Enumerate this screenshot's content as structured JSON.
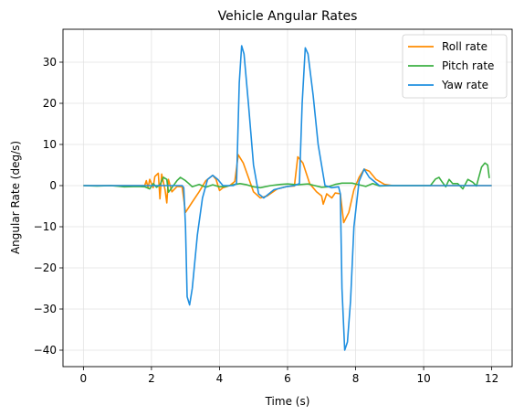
{
  "chart_data": {
    "type": "line",
    "title": "Vehicle Angular Rates",
    "xlabel": "Time (s)",
    "ylabel": "Angular Rate (deg/s)",
    "xlim": [
      -0.6,
      12.6
    ],
    "ylim": [
      -44,
      38
    ],
    "xticks": [
      0,
      2,
      4,
      6,
      8,
      10,
      12
    ],
    "yticks": [
      -40,
      -30,
      -20,
      -10,
      0,
      10,
      20,
      30
    ],
    "grid": true,
    "legend_position": "top-right",
    "series": [
      {
        "name": "Roll rate",
        "color": "#ff8c00",
        "points": [
          [
            0,
            0
          ],
          [
            1.8,
            0
          ],
          [
            1.85,
            1.2
          ],
          [
            1.9,
            -0.6
          ],
          [
            1.95,
            1.5
          ],
          [
            2.05,
            -0.5
          ],
          [
            2.1,
            2.2
          ],
          [
            2.2,
            3
          ],
          [
            2.25,
            -3.2
          ],
          [
            2.3,
            2.8
          ],
          [
            2.4,
            -1
          ],
          [
            2.45,
            -4.2
          ],
          [
            2.5,
            1.5
          ],
          [
            2.6,
            -1.5
          ],
          [
            2.75,
            -0.2
          ],
          [
            2.9,
            -0.3
          ],
          [
            3.0,
            -6.5
          ],
          [
            3.2,
            -4
          ],
          [
            3.4,
            -1.5
          ],
          [
            3.6,
            1.2
          ],
          [
            3.8,
            2.5
          ],
          [
            3.9,
            1.5
          ],
          [
            4.0,
            -1.2
          ],
          [
            4.1,
            -0.5
          ],
          [
            4.3,
            0
          ],
          [
            4.45,
            1
          ],
          [
            4.55,
            7.5
          ],
          [
            4.7,
            5.5
          ],
          [
            4.85,
            2
          ],
          [
            5.0,
            -1.5
          ],
          [
            5.2,
            -3
          ],
          [
            5.4,
            -2.5
          ],
          [
            5.7,
            -0.8
          ],
          [
            6.0,
            -0.2
          ],
          [
            6.2,
            -0.1
          ],
          [
            6.3,
            7
          ],
          [
            6.45,
            5.5
          ],
          [
            6.55,
            3
          ],
          [
            6.65,
            0.5
          ],
          [
            6.75,
            -0.5
          ],
          [
            6.85,
            -1.5
          ],
          [
            7.0,
            -2.5
          ],
          [
            7.05,
            -4.5
          ],
          [
            7.15,
            -2
          ],
          [
            7.3,
            -3
          ],
          [
            7.4,
            -1.8
          ],
          [
            7.55,
            -2
          ],
          [
            7.65,
            -9
          ],
          [
            7.8,
            -6.5
          ],
          [
            7.95,
            -1
          ],
          [
            8.1,
            2
          ],
          [
            8.25,
            4
          ],
          [
            8.4,
            3.5
          ],
          [
            8.6,
            1.5
          ],
          [
            8.85,
            0.3
          ],
          [
            9.1,
            0
          ],
          [
            12,
            0
          ]
        ]
      },
      {
        "name": "Pitch rate",
        "color": "#3cb043",
        "points": [
          [
            0,
            0
          ],
          [
            0.4,
            -0.1
          ],
          [
            0.8,
            0
          ],
          [
            1.2,
            -0.3
          ],
          [
            1.6,
            -0.2
          ],
          [
            1.8,
            -0.3
          ],
          [
            1.95,
            -0.8
          ],
          [
            2.05,
            0.5
          ],
          [
            2.15,
            -0.4
          ],
          [
            2.25,
            0.2
          ],
          [
            2.35,
            2
          ],
          [
            2.45,
            1.5
          ],
          [
            2.5,
            -1.6
          ],
          [
            2.6,
            -0.5
          ],
          [
            2.75,
            1.2
          ],
          [
            2.85,
            2
          ],
          [
            3.0,
            1.2
          ],
          [
            3.1,
            0.5
          ],
          [
            3.2,
            -0.3
          ],
          [
            3.4,
            0.3
          ],
          [
            3.6,
            -0.4
          ],
          [
            3.8,
            0.2
          ],
          [
            4.0,
            -0.3
          ],
          [
            4.2,
            -0.2
          ],
          [
            4.4,
            0.2
          ],
          [
            4.6,
            0.5
          ],
          [
            4.8,
            0.2
          ],
          [
            5.0,
            -0.3
          ],
          [
            5.2,
            -0.5
          ],
          [
            5.5,
            0
          ],
          [
            5.8,
            0.3
          ],
          [
            6.0,
            0.4
          ],
          [
            6.3,
            0.2
          ],
          [
            6.6,
            0.4
          ],
          [
            6.8,
            0
          ],
          [
            7.0,
            -0.4
          ],
          [
            7.2,
            -0.3
          ],
          [
            7.4,
            0.3
          ],
          [
            7.6,
            0.6
          ],
          [
            7.9,
            0.6
          ],
          [
            8.1,
            0.2
          ],
          [
            8.3,
            -0.2
          ],
          [
            8.5,
            0.5
          ],
          [
            8.7,
            -0.1
          ],
          [
            9.0,
            0
          ],
          [
            10.2,
            0
          ],
          [
            10.35,
            1.6
          ],
          [
            10.45,
            2
          ],
          [
            10.55,
            0.8
          ],
          [
            10.65,
            -0.3
          ],
          [
            10.75,
            1.5
          ],
          [
            10.85,
            0.5
          ],
          [
            11.0,
            0.5
          ],
          [
            11.15,
            -0.8
          ],
          [
            11.3,
            1.5
          ],
          [
            11.45,
            0.8
          ],
          [
            11.55,
            -0.1
          ],
          [
            11.7,
            4.5
          ],
          [
            11.8,
            5.5
          ],
          [
            11.88,
            5
          ],
          [
            11.93,
            1.8
          ]
        ]
      },
      {
        "name": "Yaw rate",
        "color": "#1f8fe0",
        "points": [
          [
            0,
            0
          ],
          [
            2.9,
            0
          ],
          [
            2.95,
            -0.5
          ],
          [
            3.0,
            -10
          ],
          [
            3.05,
            -27
          ],
          [
            3.12,
            -29
          ],
          [
            3.2,
            -25
          ],
          [
            3.35,
            -12
          ],
          [
            3.5,
            -3
          ],
          [
            3.65,
            1.5
          ],
          [
            3.8,
            2.5
          ],
          [
            3.95,
            1.5
          ],
          [
            4.1,
            0
          ],
          [
            4.4,
            0
          ],
          [
            4.5,
            0.5
          ],
          [
            4.58,
            25
          ],
          [
            4.65,
            34
          ],
          [
            4.72,
            32
          ],
          [
            4.85,
            20
          ],
          [
            5.0,
            5
          ],
          [
            5.15,
            -2
          ],
          [
            5.3,
            -3
          ],
          [
            5.6,
            -1
          ],
          [
            6.0,
            -0.2
          ],
          [
            6.2,
            0
          ],
          [
            6.35,
            0.5
          ],
          [
            6.43,
            20
          ],
          [
            6.52,
            33.5
          ],
          [
            6.6,
            32
          ],
          [
            6.75,
            22
          ],
          [
            6.9,
            10
          ],
          [
            7.1,
            0
          ],
          [
            7.3,
            -0.5
          ],
          [
            7.5,
            -0.3
          ],
          [
            7.55,
            -2
          ],
          [
            7.6,
            -25
          ],
          [
            7.68,
            -40
          ],
          [
            7.76,
            -38
          ],
          [
            7.85,
            -28
          ],
          [
            7.95,
            -10
          ],
          [
            8.1,
            1
          ],
          [
            8.25,
            4
          ],
          [
            8.4,
            2
          ],
          [
            8.7,
            0
          ],
          [
            12,
            0
          ]
        ]
      }
    ]
  }
}
